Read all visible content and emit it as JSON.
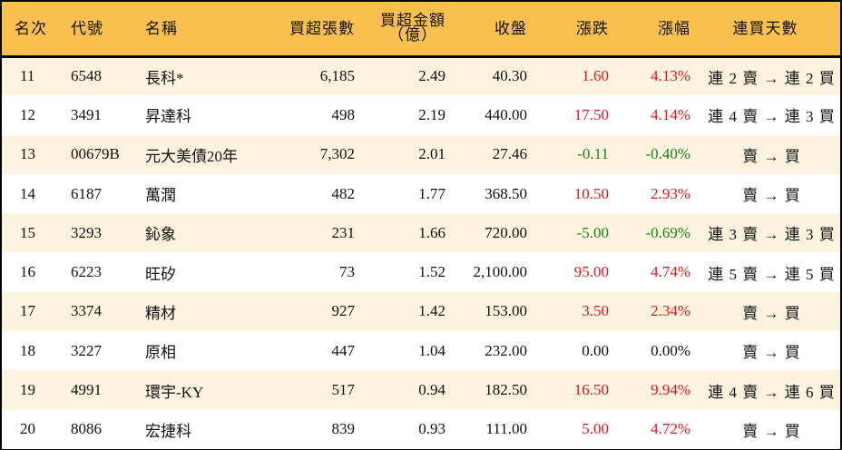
{
  "table": {
    "headers": {
      "rank": "名次",
      "code": "代號",
      "name": "名稱",
      "net_buy_volume": "買超張數",
      "net_buy_amount_line1": "買超金額",
      "net_buy_amount_line2": "（億）",
      "close": "收盤",
      "change": "漲跌",
      "change_pct": "漲幅",
      "streak": "連買天數"
    },
    "colors": {
      "header_bg": "#f9c04d",
      "odd_row_bg": "#fdf3de",
      "even_row_bg": "#ffffff",
      "up": "#e8141c",
      "down": "#15861b"
    },
    "rows": [
      {
        "rank": "11",
        "code": "6548",
        "name": "長科*",
        "volume": "6,185",
        "amount": "2.49",
        "close": "40.30",
        "change": "1.60",
        "pct": "4.13%",
        "dir": "up",
        "streak": "連 2 賣 → 連 2 買"
      },
      {
        "rank": "12",
        "code": "3491",
        "name": "昇達科",
        "volume": "498",
        "amount": "2.19",
        "close": "440.00",
        "change": "17.50",
        "pct": "4.14%",
        "dir": "up",
        "streak": "連 4 賣 → 連 3 買"
      },
      {
        "rank": "13",
        "code": "00679B",
        "name": "元大美債20年",
        "volume": "7,302",
        "amount": "2.01",
        "close": "27.46",
        "change": "-0.11",
        "pct": "-0.40%",
        "dir": "down",
        "streak": "賣 → 買"
      },
      {
        "rank": "14",
        "code": "6187",
        "name": "萬潤",
        "volume": "482",
        "amount": "1.77",
        "close": "368.50",
        "change": "10.50",
        "pct": "2.93%",
        "dir": "up",
        "streak": "賣 → 買"
      },
      {
        "rank": "15",
        "code": "3293",
        "name": "鈊象",
        "volume": "231",
        "amount": "1.66",
        "close": "720.00",
        "change": "-5.00",
        "pct": "-0.69%",
        "dir": "down",
        "streak": "連 3 賣 → 連 3 買"
      },
      {
        "rank": "16",
        "code": "6223",
        "name": "旺矽",
        "volume": "73",
        "amount": "1.52",
        "close": "2,100.00",
        "change": "95.00",
        "pct": "4.74%",
        "dir": "up",
        "streak": "連 5 賣 → 連 5 買"
      },
      {
        "rank": "17",
        "code": "3374",
        "name": "精材",
        "volume": "927",
        "amount": "1.42",
        "close": "153.00",
        "change": "3.50",
        "pct": "2.34%",
        "dir": "up",
        "streak": "賣 → 買"
      },
      {
        "rank": "18",
        "code": "3227",
        "name": "原相",
        "volume": "447",
        "amount": "1.04",
        "close": "232.00",
        "change": "0.00",
        "pct": "0.00%",
        "dir": "flat",
        "streak": "賣 → 買"
      },
      {
        "rank": "19",
        "code": "4991",
        "name": "環宇-KY",
        "volume": "517",
        "amount": "0.94",
        "close": "182.50",
        "change": "16.50",
        "pct": "9.94%",
        "dir": "up",
        "streak": "連 4 賣 → 連 6 買"
      },
      {
        "rank": "20",
        "code": "8086",
        "name": "宏捷科",
        "volume": "839",
        "amount": "0.93",
        "close": "111.00",
        "change": "5.00",
        "pct": "4.72%",
        "dir": "up",
        "streak": "賣 → 買"
      }
    ]
  }
}
